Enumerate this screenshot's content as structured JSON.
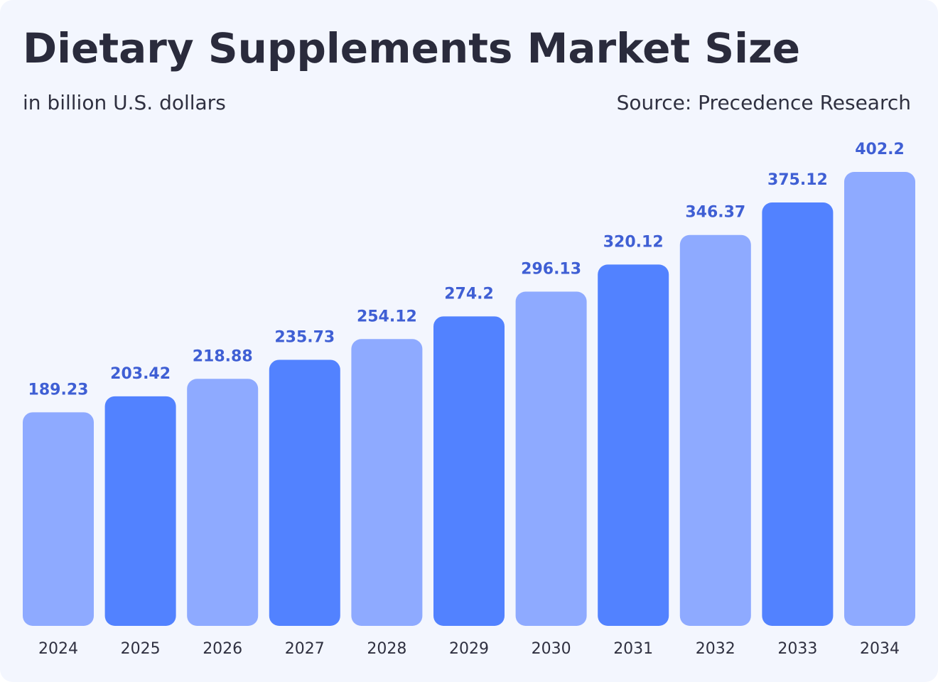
{
  "chart_data": {
    "type": "bar",
    "title": "Dietary Supplements Market Size",
    "subtitle": "in billion U.S. dollars",
    "source": "Source: Precedence Research",
    "categories": [
      "2024",
      "2025",
      "2026",
      "2027",
      "2028",
      "2029",
      "2030",
      "2031",
      "2032",
      "2033",
      "2034"
    ],
    "values": [
      189.23,
      203.42,
      218.88,
      235.73,
      254.12,
      274.2,
      296.13,
      320.12,
      346.37,
      375.12,
      402.2
    ],
    "colors": [
      "#8eaaff",
      "#5282ff",
      "#8eaaff",
      "#5282ff",
      "#8eaaff",
      "#5282ff",
      "#8eaaff",
      "#5282ff",
      "#8eaaff",
      "#5282ff",
      "#8eaaff"
    ]
  }
}
